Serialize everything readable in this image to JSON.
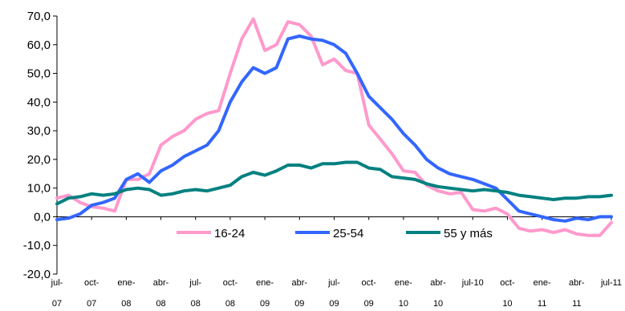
{
  "chart_data": {
    "type": "line",
    "ylim": [
      -20,
      70
    ],
    "yticks": [
      -20,
      -10,
      0,
      10,
      20,
      30,
      40,
      50,
      60,
      70
    ],
    "ytick_labels": [
      "-20,0",
      "-10,0",
      "0,0",
      "10,0",
      "20,0",
      "30,0",
      "40,0",
      "50,0",
      "60,0",
      "70,0"
    ],
    "grid": false,
    "legend_position": "bottom-center",
    "xtick_labels": [
      [
        "jul-",
        "07"
      ],
      [
        "oct-",
        "07"
      ],
      [
        "ene-",
        "08"
      ],
      [
        "abr-",
        "08"
      ],
      [
        "jul-",
        "08"
      ],
      [
        "oct-",
        "08"
      ],
      [
        "ene-",
        "09"
      ],
      [
        "abr-",
        "09"
      ],
      [
        "jul-",
        "09"
      ],
      [
        "oct-",
        "09"
      ],
      [
        "ene-",
        "10"
      ],
      [
        "abr-",
        "10"
      ],
      [
        "jul-10",
        ""
      ],
      [
        "oct-",
        "10"
      ],
      [
        "ene-",
        "11"
      ],
      [
        "abr-",
        "11"
      ],
      [
        "jul-11",
        ""
      ]
    ],
    "x_months": [
      "jul-07",
      "ago-07",
      "sep-07",
      "oct-07",
      "nov-07",
      "dic-07",
      "ene-08",
      "feb-08",
      "mar-08",
      "abr-08",
      "may-08",
      "jun-08",
      "jul-08",
      "ago-08",
      "sep-08",
      "oct-08",
      "nov-08",
      "dic-08",
      "ene-09",
      "feb-09",
      "mar-09",
      "abr-09",
      "may-09",
      "jun-09",
      "jul-09",
      "ago-09",
      "sep-09",
      "oct-09",
      "nov-09",
      "dic-09",
      "ene-10",
      "feb-10",
      "mar-10",
      "abr-10",
      "may-10",
      "jun-10",
      "jul-10",
      "ago-10",
      "sep-10",
      "oct-10",
      "nov-10",
      "dic-10",
      "ene-11",
      "feb-11",
      "mar-11",
      "abr-11",
      "may-11",
      "jun-11",
      "jul-11"
    ],
    "series": [
      {
        "name": "16-24",
        "color": "#ff99cc",
        "values": [
          6.5,
          7.5,
          5,
          3.5,
          3,
          2,
          13,
          13,
          15,
          25,
          28,
          30,
          34,
          36,
          37,
          50,
          62,
          69,
          58,
          60,
          68,
          67,
          63,
          53,
          55,
          51,
          50,
          32,
          27,
          22,
          16,
          15.5,
          11,
          9,
          8,
          8.5,
          2.5,
          2,
          3,
          1,
          -4,
          -5,
          -4.5,
          -5.5,
          -4.5,
          -6,
          -6.5,
          -6.5,
          -2
        ]
      },
      {
        "name": "25-54",
        "color": "#3366ff",
        "values": [
          -1,
          -0.5,
          1,
          4,
          5,
          6.5,
          13,
          15,
          12,
          16,
          18,
          21,
          23,
          25,
          30,
          40,
          47,
          52,
          50,
          52,
          62,
          63,
          62,
          61.5,
          60,
          57,
          50,
          42,
          38,
          34,
          29,
          25,
          20,
          17,
          15,
          14,
          13,
          11.5,
          10,
          6,
          2,
          1,
          0,
          -1,
          -1.5,
          -0.5,
          -1,
          0,
          0
        ]
      },
      {
        "name": "55 y más",
        "color": "#008080",
        "values": [
          4.5,
          6.5,
          7,
          8,
          7.5,
          8,
          9.5,
          10,
          9.5,
          7.5,
          8,
          9,
          9.5,
          9,
          10,
          11,
          14,
          15.5,
          14.5,
          16,
          18,
          18,
          17,
          18.5,
          18.5,
          19,
          19,
          17,
          16.5,
          14,
          13.5,
          13,
          11.5,
          10.5,
          10,
          9.5,
          9,
          9.5,
          9,
          8.5,
          7.5,
          7,
          6.5,
          6,
          6.5,
          6.5,
          7,
          7,
          7.5
        ]
      }
    ]
  }
}
